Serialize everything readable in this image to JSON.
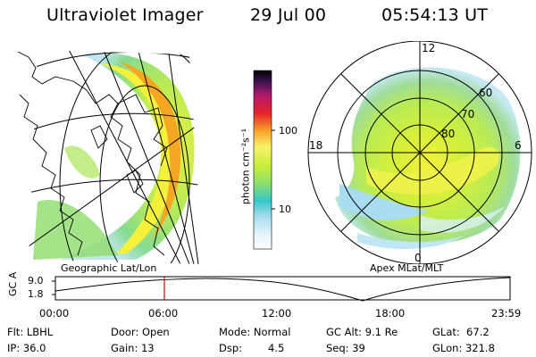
{
  "header": {
    "title": "Ultraviolet Imager",
    "date": "29 Jul 00",
    "time": "05:54:13 UT"
  },
  "geo_panel": {
    "caption": "Geographic Lat/Lon"
  },
  "polar_panel": {
    "caption": "Apex MLat/MLT",
    "mlt_labels": {
      "top": "12",
      "left": "18",
      "right": "6",
      "bottom": "0"
    },
    "lat_labels": [
      "60",
      "70",
      "80"
    ]
  },
  "colorbar": {
    "unit": "photon cm⁻²s⁻¹",
    "ticks": [
      "100",
      "10"
    ]
  },
  "alt_plot": {
    "ylabel": "GC Alt",
    "yticks": [
      "9.0",
      "1.8"
    ],
    "xticks": [
      "00:00",
      "06:00",
      "12:00",
      "18:00",
      "23:59"
    ],
    "marker_time": "05:54"
  },
  "status": {
    "filter": "Flt: LBHL",
    "ip": "IP: 36.0",
    "door": "Door: Open",
    "gain": "Gain: 13",
    "mode": "Mode: Normal",
    "dsp_label": "Dsp:",
    "dsp_value": "4.5",
    "gc_alt": "GC Alt: 9.1 Re",
    "seq": "Seq: 39",
    "glat": "GLat:  67.2",
    "glon": "GLon: 321.8"
  },
  "colors": {
    "aurora_low": "#9fdcf0",
    "aurora_mid": "#9fe85a",
    "aurora_high": "#f5f03a",
    "aurora_peak": "#f5a623",
    "marker": "#e00000"
  }
}
